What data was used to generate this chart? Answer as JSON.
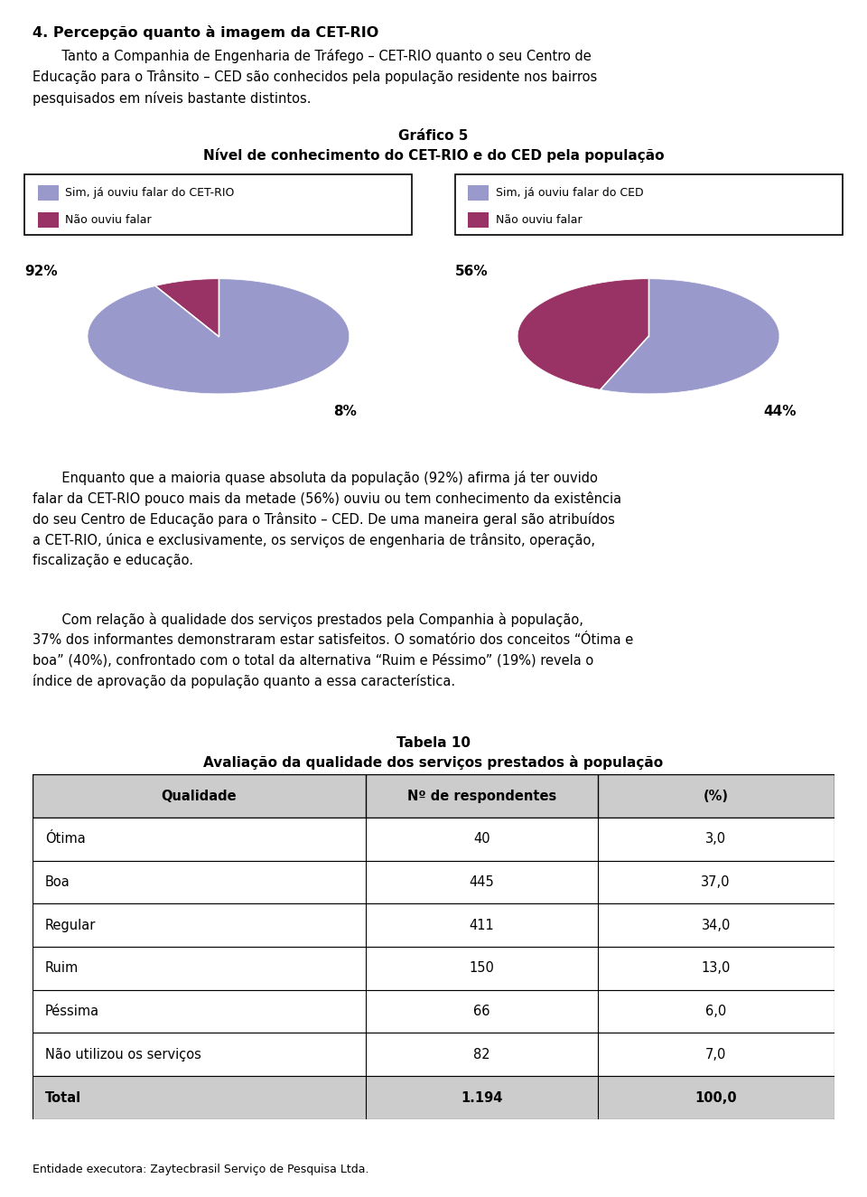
{
  "title_section": "4. Percepção quanto à imagem da CET-RIO",
  "chart_title_line1": "Gráfico 5",
  "chart_title_line2": "Nível de conhecimento do CET-RIO e do CED pela população",
  "pie1": {
    "values": [
      92,
      8
    ],
    "labels": [
      "Sim, já ouviu falar do CET-RIO",
      "Não ouviu falar"
    ],
    "colors": [
      "#9999cc",
      "#993366"
    ],
    "side_colors": [
      "#7777aa",
      "#772255"
    ],
    "pct_labels": [
      "92%",
      "8%"
    ]
  },
  "pie2": {
    "values": [
      56,
      44
    ],
    "labels": [
      "Sim, já ouviu falar do CED",
      "Não ouviu falar"
    ],
    "colors": [
      "#9999cc",
      "#993366"
    ],
    "side_colors": [
      "#7777aa",
      "#772255"
    ],
    "pct_labels": [
      "56%",
      "44%"
    ]
  },
  "bg_color": "#d4d4d4",
  "paragraph1_indent": "       Enquanto que a maioria quase absoluta da população (92%) afirma já ter ouvido falar da CET-RIO pouco mais da metade (56%) ouviu ou tem conhecimento da existência do seu Centro de Educação para o Trânsito – CED. De uma maneira geral são atribuídos a CET-RIO, única e exclusivamente, os serviços de engenharia de trânsito, operação, fiscalização e educação.",
  "paragraph2_indent": "       Com relação à qualidade dos serviços prestados pela Companhia à população, 37% dos informantes demonstraram estar satisfeitos. O somatório dos conceitos “Ótima e boa” (40%), confrontado com o total da alternativa “Ruim e Péssimo” (19%) revela o índice de aprovação da população quanto a essa característica.",
  "table_title_line1": "Tabela 10",
  "table_title_line2": "Avaliação da qualidade dos serviços prestados à população",
  "table_headers": [
    "Qualidade",
    "Nº de respondentes",
    "(%)"
  ],
  "table_rows": [
    [
      "Ótima",
      "40",
      "3,0"
    ],
    [
      "Boa",
      "445",
      "37,0"
    ],
    [
      "Regular",
      "411",
      "34,0"
    ],
    [
      "Ruim",
      "150",
      "13,0"
    ],
    [
      "Péssima",
      "66",
      "6,0"
    ],
    [
      "Não utilizou os serviços",
      "82",
      "7,0"
    ],
    [
      "Total",
      "1.194",
      "100,0"
    ]
  ],
  "footer": "Entidade executora: Zaytecbrasil Serviço de Pesquisa Ltda.",
  "intro_line1": "       Tanto a Companhia de Engenharia de Tráfego – CET-RIO quanto o seu Centro de",
  "intro_line2": "Educação para o Trânsito – CED são conhecidos pela população residente nos bairros",
  "intro_line3": "pesquisados em níveis bastante distintos."
}
